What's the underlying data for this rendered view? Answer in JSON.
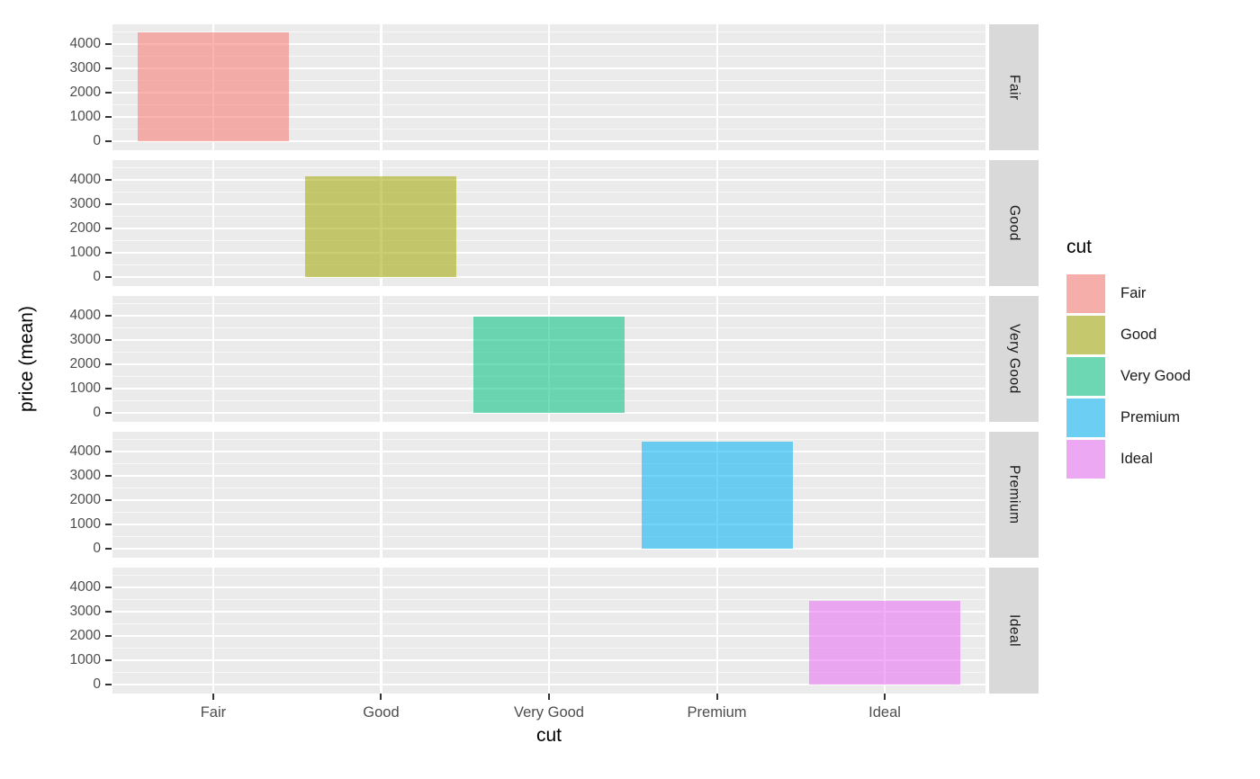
{
  "chart_data": {
    "type": "bar",
    "title": "",
    "xlabel": "cut",
    "ylabel": "price (mean)",
    "legend_title": "cut",
    "legend_position": "right",
    "categories": [
      "Fair",
      "Good",
      "Very Good",
      "Premium",
      "Ideal"
    ],
    "values": [
      4480,
      4150,
      3950,
      4400,
      3450
    ],
    "facet_labels": [
      "Fair",
      "Good",
      "Very Good",
      "Premium",
      "Ideal"
    ],
    "facet_arrangement": "one-row-per-cut, strips on right side",
    "y_ticks": [
      0,
      1000,
      2000,
      3000,
      4000
    ],
    "y_minor_ticks": [
      500,
      1500,
      2500,
      3500,
      4500
    ],
    "ylim": [
      -370,
      4815
    ],
    "grid": true,
    "bar_fill_colors": {
      "Fair": "#F8766D",
      "Good": "#A3A500",
      "Very Good": "#00BF7D",
      "Premium": "#00B0F6",
      "Ideal": "#E76BF3"
    },
    "fill_alpha": 0.55,
    "panel_bg_color": "#EBEBEB",
    "gridline_color": "#FFFFFF",
    "strip_bg_color": "#D9D9D9",
    "strip_text_color": "#1A1A1A",
    "tick_label_color": "#4D4D4D",
    "axis_title_color": "#000000"
  }
}
